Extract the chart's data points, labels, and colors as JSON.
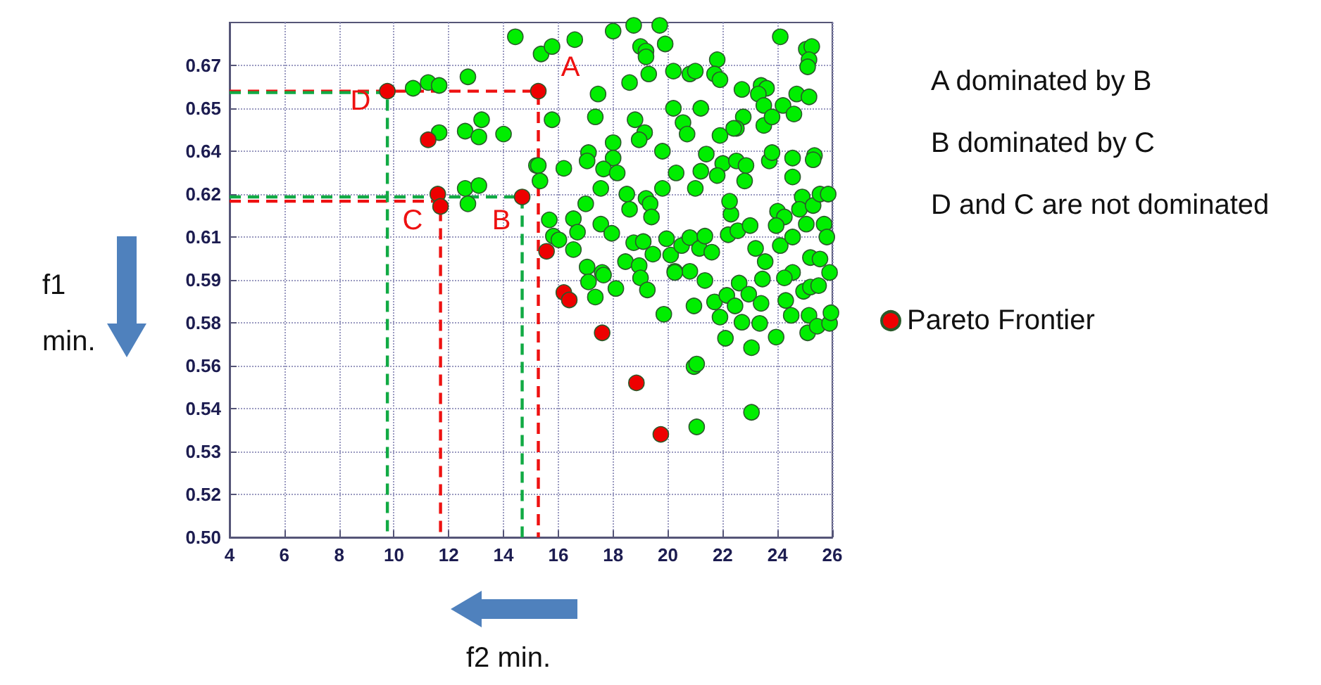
{
  "chart_data": {
    "type": "scatter",
    "xlim": [
      4,
      26
    ],
    "xticks": [
      4,
      6,
      8,
      10,
      12,
      14,
      16,
      18,
      20,
      22,
      24,
      26
    ],
    "ylim": [
      0.5,
      0.68
    ],
    "yticks": [
      {
        "value": 0.5,
        "label": "0.50"
      },
      {
        "value": 0.515,
        "label": "0.52"
      },
      {
        "value": 0.53,
        "label": "0.53"
      },
      {
        "value": 0.545,
        "label": "0.54"
      },
      {
        "value": 0.56,
        "label": "0.56"
      },
      {
        "value": 0.575,
        "label": "0.58"
      },
      {
        "value": 0.59,
        "label": "0.59"
      },
      {
        "value": 0.605,
        "label": "0.61"
      },
      {
        "value": 0.62,
        "label": "0.62"
      },
      {
        "value": 0.635,
        "label": "0.64"
      },
      {
        "value": 0.65,
        "label": "0.65"
      },
      {
        "value": 0.665,
        "label": "0.67"
      }
    ],
    "grid": true,
    "legend": "right",
    "marker": "circle",
    "series": [
      {
        "type": "line",
        "color": "#ee1111",
        "line_style": "dashed",
        "marker": "none",
        "x": [
          4,
          15.27,
          15.27
        ],
        "values": [
          0.656,
          0.656,
          0.5
        ]
      },
      {
        "type": "line",
        "color": "#ee1111",
        "line_style": "dashed",
        "marker": "none",
        "x": [
          4,
          11.7,
          11.7
        ],
        "values": [
          0.6175,
          0.6175,
          0.5
        ]
      },
      {
        "type": "line",
        "color": "#11aa44",
        "line_style": "dashed",
        "marker": "none",
        "x": [
          4,
          14.68,
          14.68
        ],
        "values": [
          0.619,
          0.619,
          0.5
        ]
      },
      {
        "type": "line",
        "color": "#11aa44",
        "line_style": "dashed",
        "marker": "none",
        "x": [
          4,
          9.76,
          9.76
        ],
        "values": [
          0.6555,
          0.6555,
          0.5
        ]
      },
      {
        "color": "#00ee00",
        "x": [
          10.7,
          11.25,
          11.65,
          12.7,
          14.43,
          11.65,
          12.6,
          13.1,
          13.2,
          14.0,
          12.6,
          13.1,
          12.7,
          15.2,
          15.37,
          15.77,
          16.6,
          18.0,
          18.75,
          19.7,
          19.0,
          19.2,
          19.2,
          19.9,
          21.8,
          24.1,
          25.05,
          25.25,
          25.15,
          25.1,
          19.3,
          20.2,
          20.8,
          21.0,
          21.7,
          21.9,
          18.6,
          17.45,
          22.7,
          23.4,
          23.6,
          23.3,
          24.7,
          25.15,
          20.2,
          21.2,
          23.5,
          24.2,
          24.6,
          15.77,
          17.35,
          18.8,
          20.55,
          22.75,
          22.5,
          23.5,
          23.8,
          19.15,
          18.95,
          20.7,
          21.9,
          22.4,
          18.0,
          17.1,
          17.05,
          18.0,
          17.65,
          18.15,
          16.2,
          15.27,
          15.33,
          19.8,
          20.3,
          21.4,
          21.2,
          22.0,
          21.8,
          22.5,
          22.85,
          22.8,
          23.7,
          23.8,
          24.55,
          24.55,
          25.35,
          25.3,
          17.55,
          18.5,
          19.2,
          19.35,
          18.6,
          17.0,
          19.4,
          19.8,
          21.0,
          22.3,
          22.25,
          24.0,
          24.25,
          24.9,
          24.8,
          25.3,
          25.55,
          25.85,
          25.05,
          25.7,
          25.8,
          23.95,
          24.1,
          24.55,
          15.67,
          16.55,
          16.7,
          17.55,
          17.95,
          15.82,
          16.02,
          16.55,
          18.75,
          19.1,
          19.95,
          19.45,
          20.1,
          20.5,
          20.8,
          21.15,
          21.35,
          21.6,
          22.2,
          22.55,
          23.0,
          23.2,
          23.55,
          17.05,
          18.45,
          18.95,
          20.25,
          20.8,
          17.6,
          24.55,
          25.2,
          25.55,
          25.9,
          17.1,
          17.35,
          17.65,
          18.1,
          19.0,
          19.25,
          19.85,
          20.25,
          21.35,
          20.95,
          21.7,
          21.9,
          22.15,
          22.45,
          22.6,
          22.95,
          23.4,
          23.45,
          22.7,
          23.35,
          22.1,
          23.05,
          23.95,
          24.3,
          24.5,
          24.25,
          24.95,
          25.2,
          25.5,
          25.15,
          25.1,
          25.45,
          25.9,
          25.95,
          20.95,
          21.05,
          23.05,
          21.05
        ],
        "values": [
          0.657,
          0.659,
          0.658,
          0.661,
          0.675,
          0.6415,
          0.642,
          0.64,
          0.646,
          0.641,
          0.622,
          0.623,
          0.6166,
          0.63,
          0.669,
          0.6716,
          0.674,
          0.677,
          0.679,
          0.679,
          0.6716,
          0.67,
          0.668,
          0.6725,
          0.667,
          0.675,
          0.6707,
          0.6716,
          0.667,
          0.6645,
          0.662,
          0.663,
          0.662,
          0.663,
          0.662,
          0.66,
          0.659,
          0.655,
          0.6566,
          0.658,
          0.657,
          0.655,
          0.655,
          0.654,
          0.65,
          0.65,
          0.651,
          0.651,
          0.648,
          0.646,
          0.647,
          0.646,
          0.645,
          0.647,
          0.643,
          0.644,
          0.647,
          0.6415,
          0.639,
          0.641,
          0.6405,
          0.643,
          0.638,
          0.6345,
          0.6316,
          0.6326,
          0.6288,
          0.6274,
          0.629,
          0.63,
          0.6246,
          0.635,
          0.6274,
          0.634,
          0.628,
          0.6307,
          0.6265,
          0.6316,
          0.63,
          0.6246,
          0.6316,
          0.6345,
          0.6326,
          0.626,
          0.6335,
          0.632,
          0.622,
          0.62,
          0.6185,
          0.6166,
          0.6147,
          0.6166,
          0.612,
          0.622,
          0.622,
          0.613,
          0.6175,
          0.614,
          0.612,
          0.619,
          0.6147,
          0.616,
          0.62,
          0.62,
          0.6095,
          0.6095,
          0.605,
          0.609,
          0.602,
          0.605,
          0.611,
          0.6114,
          0.6067,
          0.6095,
          0.6063,
          0.6053,
          0.604,
          0.6006,
          0.603,
          0.6034,
          0.6044,
          0.599,
          0.5987,
          0.602,
          0.6048,
          0.601,
          0.6053,
          0.5997,
          0.6058,
          0.6072,
          0.609,
          0.601,
          0.5964,
          0.5945,
          0.5964,
          0.595,
          0.593,
          0.593,
          0.5926,
          0.5926,
          0.5978,
          0.5973,
          0.5926,
          0.5893,
          0.584,
          0.5917,
          0.587,
          0.5907,
          0.5865,
          0.578,
          0.5926,
          0.5898,
          0.5809,
          0.5823,
          0.577,
          0.5846,
          0.5809,
          0.5889,
          0.585,
          0.5818,
          0.5903,
          0.5752,
          0.5748,
          0.5696,
          0.5663,
          0.57,
          0.5828,
          0.5776,
          0.5907,
          0.586,
          0.5875,
          0.588,
          0.5776,
          0.5715,
          0.5738,
          0.5748,
          0.5785,
          0.5597,
          0.5606,
          0.5437,
          0.5386
        ]
      },
      {
        "name": "Pareto Frontier",
        "color": "#ee0000",
        "x": [
          9.76,
          11.25,
          11.6,
          11.7,
          14.68,
          15.27,
          15.57,
          16.2,
          16.4,
          17.6,
          18.85,
          19.74
        ],
        "values": [
          0.656,
          0.639,
          0.62,
          0.6157,
          0.619,
          0.656,
          0.6,
          0.5856,
          0.583,
          0.5715,
          0.554,
          0.536
        ]
      }
    ],
    "annotations": [
      "A",
      "B",
      "C",
      "D",
      "A dominated by B",
      "B dominated by C",
      "D and C are not dominated",
      "f1\nmin.",
      "f2 min."
    ]
  }
}
